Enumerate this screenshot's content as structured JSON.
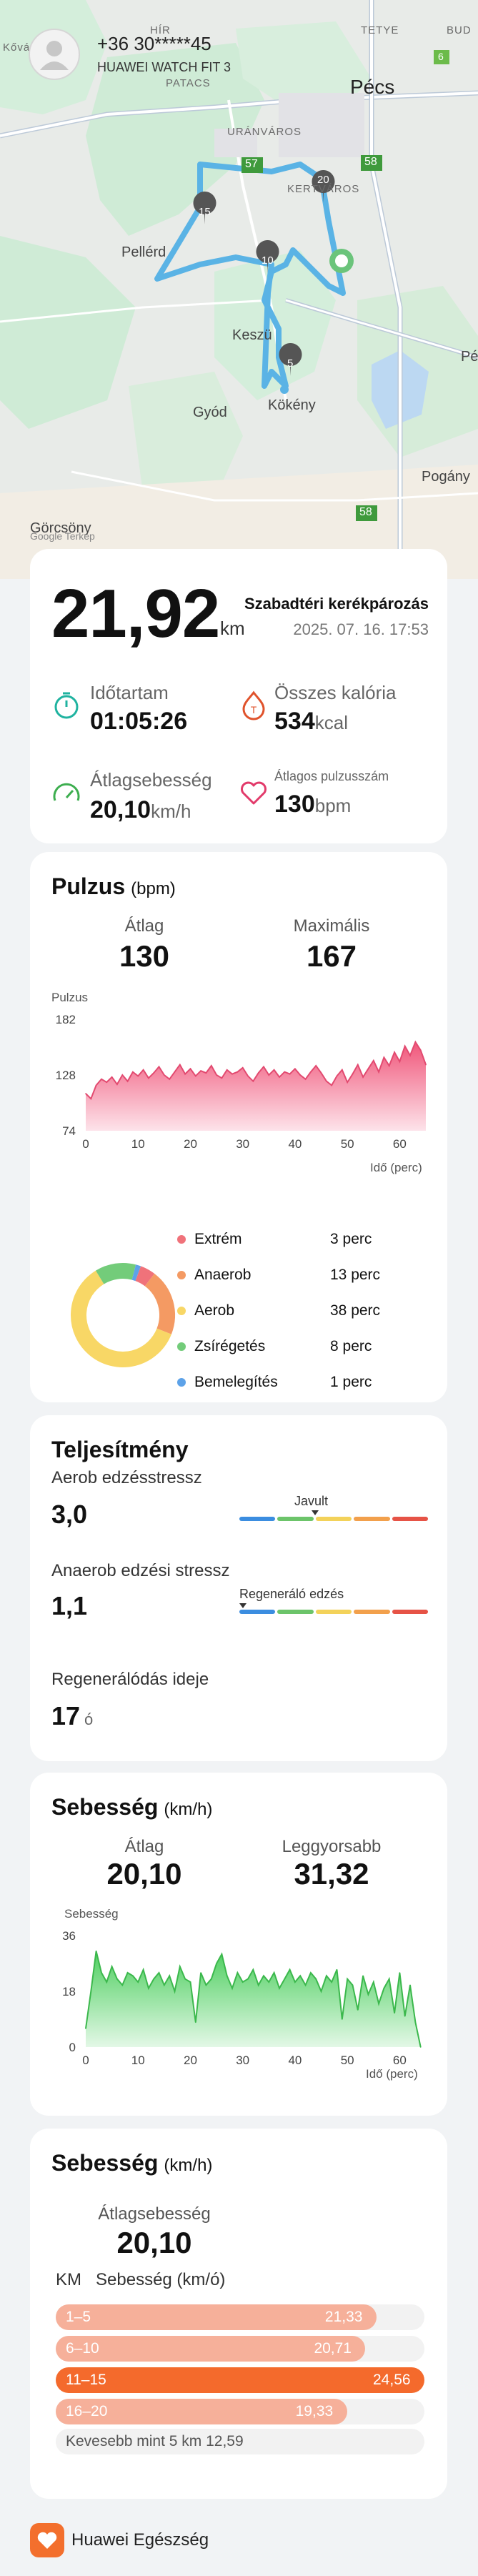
{
  "user": {
    "phone": "+36 30*****45",
    "device": "HUAWEI WATCH FIT 3"
  },
  "map": {
    "places": [
      "Pécs",
      "URÁNVÁROS",
      "KERTVÁROS",
      "PATACS",
      "Pellérd",
      "Keszü",
      "Gyód",
      "Kökény",
      "Pogány",
      "Görcsöny",
      "Pé",
      "Kővá",
      "HÍR",
      "TETYE",
      "BUD"
    ],
    "road_numbers": [
      "57",
      "58",
      "58",
      "6"
    ],
    "km_markers": [
      "20",
      "15",
      "10",
      "5"
    ],
    "attribution": "Google Terkep"
  },
  "summary": {
    "distance": "21,92",
    "distance_unit": "km",
    "sport": "Szabadtéri kerékpározás",
    "datetime": "2025. 07. 16. 17:53",
    "duration_label": "Időtartam",
    "duration": "01:05:26",
    "calories_label": "Összes kalória",
    "calories": "534",
    "calories_unit": "kcal",
    "avg_speed_label": "Átlagsebesség",
    "avg_speed": "20,10",
    "avg_speed_unit": "km/h",
    "avg_hr_label": "Átlagos pulzusszám",
    "avg_hr": "130",
    "avg_hr_unit": "bpm"
  },
  "pulse": {
    "title": "Pulzus",
    "unit": "(bpm)",
    "avg_label": "Átlag",
    "avg": "130",
    "max_label": "Maximális",
    "max": "167",
    "y_axis_label": "Pulzus",
    "x_axis_label": "Idő (perc)",
    "zones": [
      {
        "name": "Extrém",
        "value": "3 perc",
        "color": "#f0727a"
      },
      {
        "name": "Anaerob",
        "value": "13 perc",
        "color": "#f49a63"
      },
      {
        "name": "Aerob",
        "value": "38 perc",
        "color": "#f8d766"
      },
      {
        "name": "Zsírégetés",
        "value": "8 perc",
        "color": "#73cc7a"
      },
      {
        "name": "Bemelegítés",
        "value": "1 perc",
        "color": "#5da2e8"
      }
    ]
  },
  "performance": {
    "title": "Teljesítmény",
    "aerobic_label": "Aerob edzésstressz",
    "aerobic_value": "3,0",
    "aerobic_status": "Javult",
    "anaerobic_label": "Anaerob edzési stressz",
    "anaerobic_value": "1,1",
    "anaerobic_status": "Regeneráló edzés",
    "recovery_label": "Regenerálódás ideje",
    "recovery_value": "17",
    "recovery_unit": "ó",
    "scale_colors": [
      "#3b8de0",
      "#6cc46a",
      "#f3d25a",
      "#f2a04c",
      "#e65346"
    ]
  },
  "speed_chart": {
    "title": "Sebesség",
    "unit": "(km/h)",
    "avg_label": "Átlag",
    "avg": "20,10",
    "max_label": "Leggyorsabb",
    "max": "31,32",
    "y_axis_label": "Sebesség",
    "x_axis_label": "Idő (perc)"
  },
  "splits": {
    "title": "Sebesség",
    "unit": "(km/h)",
    "avg_label": "Átlagsebesség",
    "avg": "20,10",
    "col_km": "KM",
    "col_speed": "Sebesség (km/ó)",
    "rows": [
      {
        "range": "1–5",
        "speed": "21,33",
        "fraction": 0.87,
        "color": "#f6b09a"
      },
      {
        "range": "6–10",
        "speed": "20,71",
        "fraction": 0.84,
        "color": "#f6b09a"
      },
      {
        "range": "11–15",
        "speed": "24,56",
        "fraction": 1.0,
        "color": "#f46a2c"
      },
      {
        "range": "16–20",
        "speed": "19,33",
        "fraction": 0.79,
        "color": "#f6b09a"
      }
    ],
    "note": "Kevesebb mint 5 km 12,59"
  },
  "footer": {
    "app": "Huawei Egészség"
  },
  "chart_data": [
    {
      "type": "area",
      "title": "Pulzus",
      "ylabel": "Pulzus",
      "xlabel": "Idő (perc)",
      "x_ticks": [
        0,
        10,
        20,
        30,
        40,
        50,
        60
      ],
      "y_ticks": [
        74,
        128,
        182
      ],
      "ylim": [
        74,
        182
      ],
      "xlim": [
        0,
        65
      ],
      "grid": false,
      "series": [
        {
          "x": [
            0,
            1,
            2,
            3,
            4,
            5,
            6,
            7,
            8,
            9,
            10,
            11,
            12,
            13,
            14,
            15,
            16,
            17,
            18,
            19,
            20,
            21,
            22,
            23,
            24,
            25,
            26,
            27,
            28,
            29,
            30,
            31,
            32,
            33,
            34,
            35,
            36,
            37,
            38,
            39,
            40,
            41,
            42,
            43,
            44,
            45,
            46,
            47,
            48,
            49,
            50,
            51,
            52,
            53,
            54,
            55,
            56,
            57,
            58,
            59,
            60,
            61,
            62,
            63,
            64,
            65
          ],
          "values": [
            110,
            105,
            118,
            124,
            121,
            126,
            119,
            128,
            122,
            131,
            127,
            133,
            125,
            130,
            136,
            128,
            124,
            131,
            138,
            129,
            134,
            127,
            132,
            130,
            137,
            128,
            125,
            133,
            129,
            131,
            135,
            127,
            122,
            130,
            136,
            128,
            133,
            126,
            131,
            129,
            134,
            128,
            124,
            131,
            137,
            130,
            122,
            118,
            127,
            133,
            121,
            129,
            138,
            126,
            134,
            142,
            131,
            145,
            137,
            150,
            141,
            156,
            147,
            160,
            152,
            138
          ]
        }
      ]
    },
    {
      "type": "pie",
      "title": "",
      "categories": [
        "Extrém",
        "Anaerob",
        "Aerob",
        "Zsírégetés",
        "Bemelegítés"
      ],
      "values": [
        3,
        13,
        38,
        8,
        1
      ],
      "colors": [
        "#f0727a",
        "#f49a63",
        "#f8d766",
        "#73cc7a",
        "#5da2e8"
      ]
    },
    {
      "type": "area",
      "title": "Sebesség",
      "ylabel": "Sebesség",
      "xlabel": "Idő (perc)",
      "x_ticks": [
        0,
        10,
        20,
        30,
        40,
        50,
        60
      ],
      "y_ticks": [
        0,
        18,
        36
      ],
      "ylim": [
        0,
        36
      ],
      "xlim": [
        0,
        65
      ],
      "grid": false,
      "series": [
        {
          "x": [
            0,
            1,
            2,
            3,
            4,
            5,
            6,
            7,
            8,
            9,
            10,
            11,
            12,
            13,
            14,
            15,
            16,
            17,
            18,
            19,
            20,
            21,
            22,
            23,
            24,
            25,
            26,
            27,
            28,
            29,
            30,
            31,
            32,
            33,
            34,
            35,
            36,
            37,
            38,
            39,
            40,
            41,
            42,
            43,
            44,
            45,
            46,
            47,
            48,
            49,
            50,
            51,
            52,
            53,
            54,
            55,
            56,
            57,
            58,
            59,
            60,
            61,
            62,
            63,
            64
          ],
          "values": [
            6,
            18,
            31,
            24,
            21,
            26,
            22,
            20,
            24,
            23,
            21,
            25,
            19,
            22,
            24,
            20,
            23,
            18,
            26,
            22,
            21,
            8,
            24,
            20,
            22,
            27,
            30,
            23,
            19,
            24,
            21,
            22,
            25,
            20,
            23,
            21,
            24,
            19,
            22,
            25,
            21,
            23,
            20,
            24,
            22,
            18,
            23,
            21,
            25,
            9,
            22,
            20,
            12,
            23,
            17,
            21,
            14,
            19,
            22,
            11,
            24,
            10,
            20,
            8,
            0
          ]
        }
      ]
    }
  ]
}
